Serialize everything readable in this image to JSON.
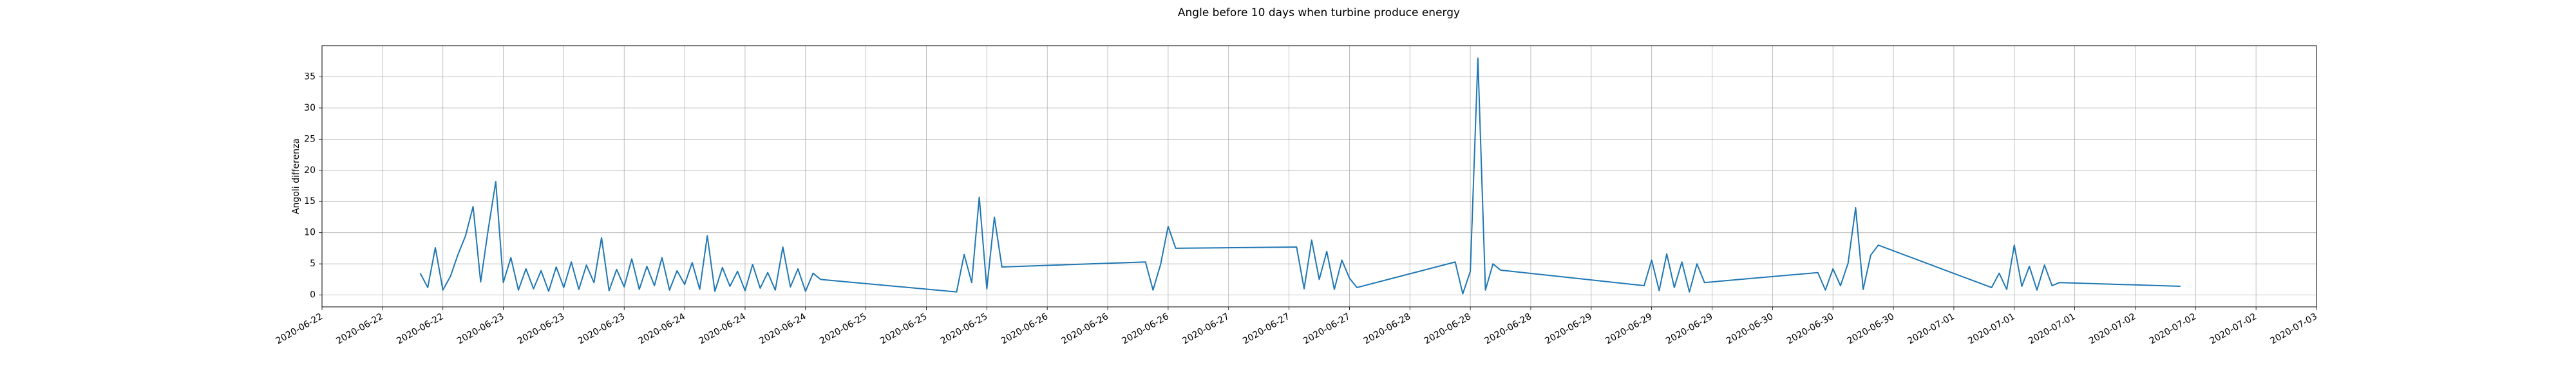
{
  "chart_data": {
    "type": "line",
    "title": "Angle before 10 days when turbine produce energy",
    "ylabel": "Angoli differenza",
    "color": "#1f77b4",
    "grid": true,
    "x": [
      "2020-06-22 13:00",
      "2020-06-22 14:00",
      "2020-06-22 15:00",
      "2020-06-22 16:00",
      "2020-06-22 17:00",
      "2020-06-22 18:00",
      "2020-06-22 19:00",
      "2020-06-22 20:00",
      "2020-06-22 21:00",
      "2020-06-22 22:00",
      "2020-06-22 23:00",
      "2020-06-23 00:00",
      "2020-06-23 01:00",
      "2020-06-23 02:00",
      "2020-06-23 03:00",
      "2020-06-23 04:00",
      "2020-06-23 05:00",
      "2020-06-23 06:00",
      "2020-06-23 07:00",
      "2020-06-23 08:00",
      "2020-06-23 09:00",
      "2020-06-23 10:00",
      "2020-06-23 11:00",
      "2020-06-23 12:00",
      "2020-06-23 13:00",
      "2020-06-23 14:00",
      "2020-06-23 15:00",
      "2020-06-23 16:00",
      "2020-06-23 17:00",
      "2020-06-23 18:00",
      "2020-06-23 19:00",
      "2020-06-23 20:00",
      "2020-06-23 21:00",
      "2020-06-23 22:00",
      "2020-06-23 23:00",
      "2020-06-24 00:00",
      "2020-06-24 01:00",
      "2020-06-24 02:00",
      "2020-06-24 03:00",
      "2020-06-24 04:00",
      "2020-06-24 05:00",
      "2020-06-24 06:00",
      "2020-06-24 07:00",
      "2020-06-24 08:00",
      "2020-06-24 09:00",
      "2020-06-24 10:00",
      "2020-06-24 11:00",
      "2020-06-24 12:00",
      "2020-06-24 13:00",
      "2020-06-24 14:00",
      "2020-06-24 15:00",
      "2020-06-24 16:00",
      "2020-06-24 17:00",
      "2020-06-24 18:00",
      "2020-06-25 12:00",
      "2020-06-25 13:00",
      "2020-06-25 14:00",
      "2020-06-25 15:00",
      "2020-06-25 16:00",
      "2020-06-25 17:00",
      "2020-06-25 18:00",
      "2020-06-26 13:00",
      "2020-06-26 14:00",
      "2020-06-26 15:00",
      "2020-06-26 16:00",
      "2020-06-26 17:00",
      "2020-06-27 09:00",
      "2020-06-27 10:00",
      "2020-06-27 11:00",
      "2020-06-27 12:00",
      "2020-06-27 13:00",
      "2020-06-27 14:00",
      "2020-06-27 15:00",
      "2020-06-27 16:00",
      "2020-06-27 17:00",
      "2020-06-28 06:00",
      "2020-06-28 07:00",
      "2020-06-28 08:00",
      "2020-06-28 09:00",
      "2020-06-28 10:00",
      "2020-06-28 11:00",
      "2020-06-28 12:00",
      "2020-06-29 07:00",
      "2020-06-29 08:00",
      "2020-06-29 09:00",
      "2020-06-29 10:00",
      "2020-06-29 11:00",
      "2020-06-29 12:00",
      "2020-06-29 13:00",
      "2020-06-29 14:00",
      "2020-06-29 15:00",
      "2020-06-30 06:00",
      "2020-06-30 07:00",
      "2020-06-30 08:00",
      "2020-06-30 09:00",
      "2020-06-30 10:00",
      "2020-06-30 11:00",
      "2020-06-30 12:00",
      "2020-06-30 13:00",
      "2020-06-30 14:00",
      "2020-07-01 05:00",
      "2020-07-01 06:00",
      "2020-07-01 07:00",
      "2020-07-01 08:00",
      "2020-07-01 09:00",
      "2020-07-01 10:00",
      "2020-07-01 11:00",
      "2020-07-01 12:00",
      "2020-07-01 13:00",
      "2020-07-01 14:00",
      "2020-07-02 06:00"
    ],
    "values": [
      3.5,
      1.2,
      7.6,
      0.8,
      3.0,
      6.5,
      9.5,
      14.2,
      2.1,
      10.5,
      18.2,
      2.0,
      6.0,
      0.8,
      4.2,
      1.0,
      3.9,
      0.6,
      4.5,
      1.2,
      5.3,
      0.9,
      4.8,
      2.0,
      9.2,
      0.7,
      4.1,
      1.3,
      5.8,
      0.9,
      4.6,
      1.5,
      6.0,
      0.8,
      3.9,
      1.7,
      5.2,
      0.9,
      9.5,
      0.6,
      4.4,
      1.4,
      3.8,
      0.7,
      4.9,
      1.1,
      3.6,
      0.8,
      7.7,
      1.3,
      4.2,
      0.6,
      3.5,
      2.5,
      0.5,
      6.5,
      2.0,
      15.7,
      1.0,
      12.5,
      4.5,
      5.3,
      0.8,
      4.9,
      11.0,
      7.5,
      7.7,
      1.0,
      8.8,
      2.5,
      7.0,
      0.9,
      5.6,
      2.7,
      1.2,
      5.3,
      0.2,
      3.8,
      38.0,
      0.8,
      5.0,
      4.0,
      1.5,
      5.6,
      0.7,
      6.6,
      1.2,
      5.3,
      0.5,
      5.0,
      2.0,
      3.6,
      0.8,
      4.2,
      1.5,
      5.1,
      14.0,
      0.9,
      6.4,
      8.0,
      1.2,
      3.5,
      0.9,
      8.0,
      1.4,
      4.6,
      0.8,
      4.8,
      1.5,
      2.0,
      1.4
    ],
    "xlim": [
      "2020-06-22 00:00",
      "2020-07-03 00:00"
    ],
    "xticks": [
      {
        "value": "2020-06-22 00:00",
        "label": "2020-06-22"
      },
      {
        "value": "2020-06-22 08:00",
        "label": "2020-06-22"
      },
      {
        "value": "2020-06-22 16:00",
        "label": "2020-06-22"
      },
      {
        "value": "2020-06-23 00:00",
        "label": "2020-06-23"
      },
      {
        "value": "2020-06-23 08:00",
        "label": "2020-06-23"
      },
      {
        "value": "2020-06-23 16:00",
        "label": "2020-06-23"
      },
      {
        "value": "2020-06-24 00:00",
        "label": "2020-06-24"
      },
      {
        "value": "2020-06-24 08:00",
        "label": "2020-06-24"
      },
      {
        "value": "2020-06-24 16:00",
        "label": "2020-06-24"
      },
      {
        "value": "2020-06-25 00:00",
        "label": "2020-06-25"
      },
      {
        "value": "2020-06-25 08:00",
        "label": "2020-06-25"
      },
      {
        "value": "2020-06-25 16:00",
        "label": "2020-06-25"
      },
      {
        "value": "2020-06-26 00:00",
        "label": "2020-06-26"
      },
      {
        "value": "2020-06-26 08:00",
        "label": "2020-06-26"
      },
      {
        "value": "2020-06-26 16:00",
        "label": "2020-06-26"
      },
      {
        "value": "2020-06-27 00:00",
        "label": "2020-06-27"
      },
      {
        "value": "2020-06-27 08:00",
        "label": "2020-06-27"
      },
      {
        "value": "2020-06-27 16:00",
        "label": "2020-06-27"
      },
      {
        "value": "2020-06-28 00:00",
        "label": "2020-06-28"
      },
      {
        "value": "2020-06-28 08:00",
        "label": "2020-06-28"
      },
      {
        "value": "2020-06-28 16:00",
        "label": "2020-06-28"
      },
      {
        "value": "2020-06-29 00:00",
        "label": "2020-06-29"
      },
      {
        "value": "2020-06-29 08:00",
        "label": "2020-06-29"
      },
      {
        "value": "2020-06-29 16:00",
        "label": "2020-06-29"
      },
      {
        "value": "2020-06-30 00:00",
        "label": "2020-06-30"
      },
      {
        "value": "2020-06-30 08:00",
        "label": "2020-06-30"
      },
      {
        "value": "2020-06-30 16:00",
        "label": "2020-06-30"
      },
      {
        "value": "2020-07-01 00:00",
        "label": "2020-07-01"
      },
      {
        "value": "2020-07-01 08:00",
        "label": "2020-07-01"
      },
      {
        "value": "2020-07-01 16:00",
        "label": "2020-07-01"
      },
      {
        "value": "2020-07-02 00:00",
        "label": "2020-07-02"
      },
      {
        "value": "2020-07-02 08:00",
        "label": "2020-07-02"
      },
      {
        "value": "2020-07-02 16:00",
        "label": "2020-07-02"
      },
      {
        "value": "2020-07-03 00:00",
        "label": "2020-07-03"
      }
    ],
    "ylim": [
      -1.9,
      40
    ],
    "yticks": [
      0,
      5,
      10,
      15,
      20,
      25,
      30,
      35
    ]
  }
}
